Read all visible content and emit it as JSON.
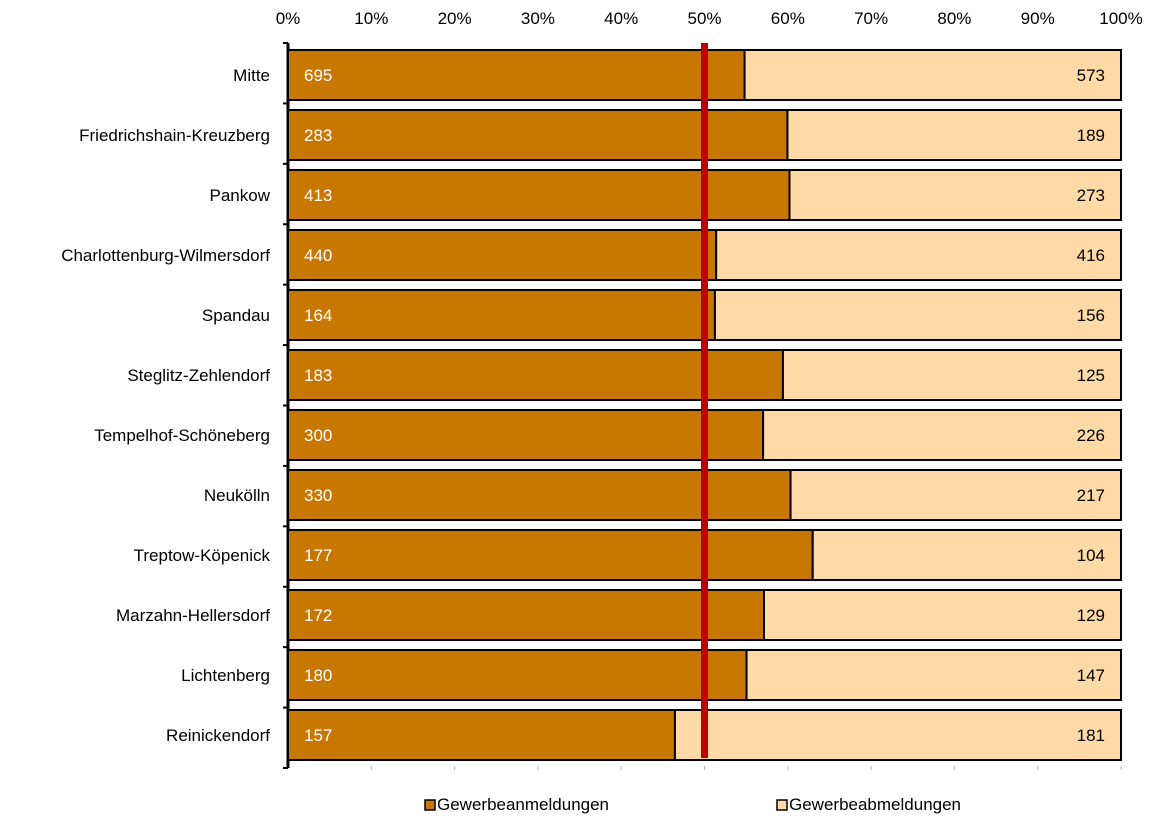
{
  "chart_data": {
    "type": "bar",
    "stacked": "percent",
    "orientation": "horizontal",
    "categories": [
      "Mitte",
      "Friedrichshain-Kreuzberg",
      "Pankow",
      "Charlottenburg-Wilmersdorf",
      "Spandau",
      "Steglitz-Zehlendorf",
      "Tempelhof-Schöneberg",
      "Neukölln",
      "Treptow-Köpenick",
      "Marzahn-Hellersdorf",
      "Lichtenberg",
      "Reinickendorf"
    ],
    "series": [
      {
        "name": "Gewerbeanmeldungen",
        "values": [
          695,
          283,
          413,
          440,
          164,
          183,
          300,
          330,
          177,
          172,
          180,
          157
        ]
      },
      {
        "name": "Gewerbeabmeldungen",
        "values": [
          573,
          189,
          273,
          416,
          156,
          125,
          226,
          217,
          104,
          129,
          147,
          181
        ]
      }
    ],
    "x_ticks": [
      "0%",
      "10%",
      "20%",
      "30%",
      "40%",
      "50%",
      "60%",
      "70%",
      "80%",
      "90%",
      "100%"
    ],
    "xlim": [
      0,
      100
    ],
    "reference_line": 50,
    "title": "",
    "xlabel": "",
    "ylabel": "",
    "legend": "bottom",
    "grid": false,
    "colors": {
      "anmeldungen": "#c87800",
      "abmeldungen": "#ffdaa6",
      "reference_line": "#c00000",
      "bar_border": "#000000"
    }
  }
}
